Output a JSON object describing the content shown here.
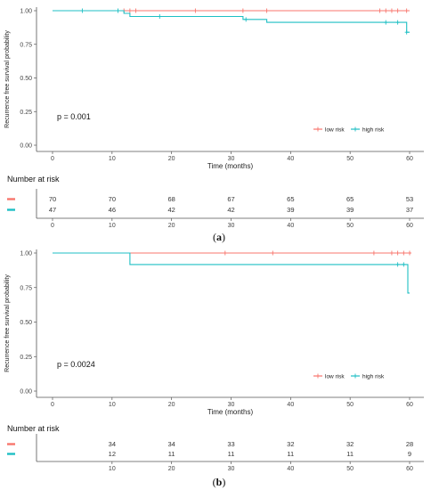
{
  "colors": {
    "low_risk": "#f8766d",
    "high_risk": "#1fbfc4",
    "axis": "#555555"
  },
  "chart_data": [
    {
      "type": "line",
      "panel_label": "(a)",
      "panel_letter": "a",
      "ylabel": "Recurrence free survival probability",
      "xlabel": "Time (months)",
      "xlim": [
        0,
        60
      ],
      "ylim": [
        0,
        1
      ],
      "xticks": [
        "0",
        "10",
        "20",
        "30",
        "40",
        "50",
        "60"
      ],
      "yticks": [
        "0.00",
        "0.25",
        "0.50",
        "0.75",
        "1.00"
      ],
      "pvalue": "p = 0.001",
      "legend": [
        "low risk",
        "high risk"
      ],
      "legend_position": "bottom-right",
      "series": [
        {
          "name": "low risk",
          "steps": [
            [
              0,
              1.0
            ],
            [
              60,
              1.0
            ]
          ],
          "censor_marks": [
            [
              12,
              1.0
            ],
            [
              13,
              1.0
            ],
            [
              14,
              1.0
            ],
            [
              24,
              1.0
            ],
            [
              32,
              1.0
            ],
            [
              36,
              1.0
            ],
            [
              55,
              1.0
            ],
            [
              56,
              1.0
            ],
            [
              57,
              1.0
            ],
            [
              58,
              1.0
            ],
            [
              59.5,
              1.0
            ]
          ]
        },
        {
          "name": "high risk",
          "steps": [
            [
              0,
              1.0
            ],
            [
              12,
              1.0
            ],
            [
              12,
              0.98
            ],
            [
              13,
              0.98
            ],
            [
              13,
              0.957
            ],
            [
              32,
              0.957
            ],
            [
              32,
              0.935
            ],
            [
              36,
              0.935
            ],
            [
              36,
              0.913
            ],
            [
              59.5,
              0.913
            ],
            [
              59.5,
              0.84
            ],
            [
              60,
              0.84
            ]
          ],
          "censor_marks": [
            [
              5,
              1.0
            ],
            [
              11,
              1.0
            ],
            [
              18,
              0.957
            ],
            [
              32.5,
              0.935
            ],
            [
              56,
              0.913
            ],
            [
              58,
              0.913
            ],
            [
              59.5,
              0.84
            ]
          ]
        }
      ],
      "risk_table": {
        "title": "Number at risk",
        "times": [
          "0",
          "10",
          "20",
          "30",
          "40",
          "50",
          "60"
        ],
        "rows": [
          {
            "name": "low risk",
            "counts": [
              "70",
              "70",
              "68",
              "67",
              "65",
              "65",
              "53"
            ]
          },
          {
            "name": "high risk",
            "counts": [
              "47",
              "46",
              "42",
              "42",
              "39",
              "39",
              "37"
            ]
          }
        ]
      }
    },
    {
      "type": "line",
      "panel_label": "(b)",
      "panel_letter": "b",
      "ylabel": "Recurrence free survival probability",
      "xlabel": "Time (months)",
      "xlim": [
        0,
        60
      ],
      "ylim": [
        0,
        1
      ],
      "xticks": [
        "0",
        "10",
        "20",
        "30",
        "40",
        "50",
        "60"
      ],
      "yticks": [
        "0.00",
        "0.25",
        "0.50",
        "0.75",
        "1.00"
      ],
      "pvalue": "p = 0.0024",
      "legend": [
        "low risk",
        "high risk"
      ],
      "legend_position": "bottom-right",
      "series": [
        {
          "name": "low risk",
          "steps": [
            [
              0,
              1.0
            ],
            [
              60,
              1.0
            ]
          ],
          "censor_marks": [
            [
              29,
              1.0
            ],
            [
              37,
              1.0
            ],
            [
              54,
              1.0
            ],
            [
              57,
              1.0
            ],
            [
              58,
              1.0
            ],
            [
              59,
              1.0
            ],
            [
              60,
              1.0
            ]
          ]
        },
        {
          "name": "high risk",
          "steps": [
            [
              0,
              1.0
            ],
            [
              13,
              1.0
            ],
            [
              13,
              0.917
            ],
            [
              59.7,
              0.917
            ],
            [
              59.7,
              0.71
            ],
            [
              60,
              0.71
            ]
          ],
          "censor_marks": [
            [
              58,
              0.917
            ],
            [
              59,
              0.917
            ]
          ]
        }
      ],
      "risk_table": {
        "title": "Number at risk",
        "times": [
          "10",
          "20",
          "30",
          "40",
          "50",
          "60"
        ],
        "rows": [
          {
            "name": "low risk",
            "counts": [
              "34",
              "34",
              "33",
              "32",
              "32",
              "28"
            ]
          },
          {
            "name": "high risk",
            "counts": [
              "12",
              "11",
              "11",
              "11",
              "11",
              "9"
            ]
          }
        ]
      }
    }
  ]
}
